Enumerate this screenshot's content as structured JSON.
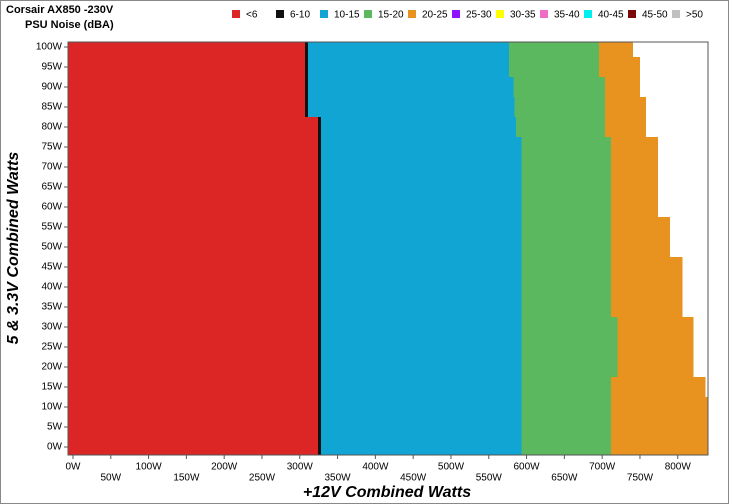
{
  "chart_data": {
    "type": "region",
    "title": "Corsair AX850 -230V",
    "subtitle": "PSU Noise (dBA)",
    "x_label": "+12V Combined Watts",
    "y_label": "5 & 3.3V Combined Watts",
    "rows": [
      0,
      5,
      10,
      15,
      20,
      25,
      30,
      35,
      40,
      45,
      50,
      55,
      60,
      65,
      70,
      75,
      80,
      85,
      90,
      95,
      100
    ],
    "row_height": 5,
    "xlim": [
      -6.6,
      840
    ],
    "ylim": [
      -2,
      101.25
    ],
    "xticks": [
      {
        "value": 0,
        "label": "0W"
      },
      {
        "value": 50,
        "label": "50W"
      },
      {
        "value": 100,
        "label": "100W"
      },
      {
        "value": 150,
        "label": "150W"
      },
      {
        "value": 200,
        "label": "200W"
      },
      {
        "value": 250,
        "label": "250W"
      },
      {
        "value": 300,
        "label": "300W"
      },
      {
        "value": 350,
        "label": "350W"
      },
      {
        "value": 400,
        "label": "400W"
      },
      {
        "value": 450,
        "label": "450W"
      },
      {
        "value": 500,
        "label": "500W"
      },
      {
        "value": 550,
        "label": "550W"
      },
      {
        "value": 600,
        "label": "600W"
      },
      {
        "value": 650,
        "label": "650W"
      },
      {
        "value": 700,
        "label": "700W"
      },
      {
        "value": 750,
        "label": "750W"
      },
      {
        "value": 800,
        "label": "800W"
      }
    ],
    "yticks": [
      {
        "value": 0,
        "label": "0W"
      },
      {
        "value": 5,
        "label": "5W"
      },
      {
        "value": 10,
        "label": "10W"
      },
      {
        "value": 15,
        "label": "15W"
      },
      {
        "value": 20,
        "label": "20W"
      },
      {
        "value": 25,
        "label": "25W"
      },
      {
        "value": 30,
        "label": "30W"
      },
      {
        "value": 35,
        "label": "35W"
      },
      {
        "value": 40,
        "label": "40W"
      },
      {
        "value": 45,
        "label": "45W"
      },
      {
        "value": 50,
        "label": "50W"
      },
      {
        "value": 55,
        "label": "55W"
      },
      {
        "value": 60,
        "label": "60W"
      },
      {
        "value": 65,
        "label": "65W"
      },
      {
        "value": 70,
        "label": "70W"
      },
      {
        "value": 75,
        "label": "75W"
      },
      {
        "value": 80,
        "label": "80W"
      },
      {
        "value": 85,
        "label": "85W"
      },
      {
        "value": 90,
        "label": "90W"
      },
      {
        "value": 95,
        "label": "95W"
      },
      {
        "value": 100,
        "label": "100W"
      }
    ],
    "series": [
      {
        "name": "<6",
        "color": "#dc2626",
        "values": [
          324,
          324,
          324,
          324,
          324,
          324,
          324,
          324,
          324,
          324,
          324,
          324,
          324,
          324,
          324,
          324,
          324,
          307,
          307,
          307,
          307
        ]
      },
      {
        "name": "6-10",
        "color": "#111111",
        "values": [
          328,
          328,
          328,
          328,
          328,
          328,
          328,
          328,
          328,
          328,
          328,
          328,
          328,
          328,
          328,
          328,
          328,
          311,
          311,
          311,
          311
        ]
      },
      {
        "name": "10-15",
        "color": "#10a5d3",
        "values": [
          593,
          593,
          593,
          593,
          593,
          593,
          593,
          593,
          593,
          593,
          593,
          593,
          593,
          593,
          593,
          593,
          586,
          584,
          583,
          577,
          577
        ]
      },
      {
        "name": "15-20",
        "color": "#5cb85f",
        "values": [
          712,
          712,
          712,
          712,
          720,
          720,
          720,
          712,
          712,
          712,
          712,
          712,
          712,
          712,
          712,
          712,
          704,
          704,
          704,
          696,
          696
        ]
      },
      {
        "name": "20-25",
        "color": "#e8921f",
        "values": [
          840,
          840,
          840,
          837,
          821,
          821,
          821,
          806,
          806,
          806,
          790,
          790,
          774,
          774,
          774,
          774,
          758,
          758,
          750,
          750,
          741
        ]
      },
      {
        "name": "25-30",
        "color": "#9013fe",
        "values": [
          null,
          null,
          null,
          null,
          null,
          null,
          null,
          null,
          null,
          null,
          null,
          null,
          null,
          null,
          null,
          null,
          null,
          null,
          null,
          null,
          null
        ]
      },
      {
        "name": "30-35",
        "color": "#ffff00",
        "values": [
          null,
          null,
          null,
          null,
          null,
          null,
          null,
          null,
          null,
          null,
          null,
          null,
          null,
          null,
          null,
          null,
          null,
          null,
          null,
          null,
          null
        ]
      },
      {
        "name": "35-40",
        "color": "#f06cc8",
        "values": [
          null,
          null,
          null,
          null,
          null,
          null,
          null,
          null,
          null,
          null,
          null,
          null,
          null,
          null,
          null,
          null,
          null,
          null,
          null,
          null,
          null
        ]
      },
      {
        "name": "40-45",
        "color": "#00f0f0",
        "values": [
          null,
          null,
          null,
          null,
          null,
          null,
          null,
          null,
          null,
          null,
          null,
          null,
          null,
          null,
          null,
          null,
          null,
          null,
          null,
          null,
          null
        ]
      },
      {
        "name": "45-50",
        "color": "#7a0a0a",
        "values": [
          null,
          null,
          null,
          null,
          null,
          null,
          null,
          null,
          null,
          null,
          null,
          null,
          null,
          null,
          null,
          null,
          null,
          null,
          null,
          null,
          null
        ]
      },
      {
        "name": ">50",
        "color": "#c0c0c0",
        "values": [
          null,
          null,
          null,
          null,
          null,
          null,
          null,
          null,
          null,
          null,
          null,
          null,
          null,
          null,
          null,
          null,
          null,
          null,
          null,
          null,
          null
        ]
      }
    ]
  }
}
